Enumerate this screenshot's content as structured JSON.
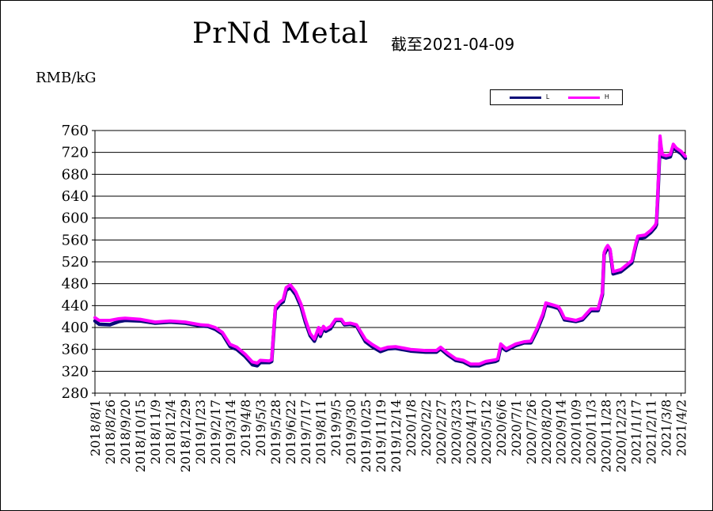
{
  "header": {
    "title": "PrNd Metal",
    "subtitle": "截至2021-04-09",
    "unit": "RMB/kG"
  },
  "colors": {
    "series_L": "#0a0a78",
    "series_H": "#ff00ff",
    "grid": "#000000"
  },
  "chart_data": {
    "type": "line",
    "title": "PrNd Metal",
    "subtitle": "截至2021-04-09",
    "ylabel": "RMB/kG",
    "ylim": [
      280,
      760
    ],
    "yticks": [
      280,
      320,
      360,
      400,
      440,
      480,
      520,
      560,
      600,
      640,
      680,
      720,
      760
    ],
    "grid": true,
    "legend_position": "top-right",
    "x_tick_labels": [
      "2018/8/1",
      "2018/8/26",
      "2018/9/20",
      "2018/10/15",
      "2018/11/9",
      "2018/12/4",
      "2018/12/29",
      "2019/1/23",
      "2019/2/17",
      "2019/3/14",
      "2019/4/8",
      "2019/5/3",
      "2019/5/28",
      "2019/6/22",
      "2019/7/17",
      "2019/8/11",
      "2019/9/5",
      "2019/9/30",
      "2019/10/25",
      "2019/11/19",
      "2019/12/14",
      "2020/1/8",
      "2020/2/2",
      "2020/2/27",
      "2020/3/23",
      "2020/4/17",
      "2020/5/12",
      "2020/6/6",
      "2020/7/1",
      "2020/7/26",
      "2020/8/20",
      "2020/9/14",
      "2020/10/9",
      "2020/11/3",
      "2020/11/28",
      "2020/12/23",
      "2021/1/17",
      "2021/2/11",
      "2021/3/8",
      "2021/4/2"
    ],
    "series": [
      {
        "name": "L",
        "x": [
          "2018/8/1",
          "2018/8/8",
          "2018/8/26",
          "2018/9/10",
          "2018/9/20",
          "2018/10/15",
          "2018/11/9",
          "2018/12/4",
          "2018/12/29",
          "2019/1/23",
          "2019/2/5",
          "2019/2/17",
          "2019/3/1",
          "2019/3/14",
          "2019/3/25",
          "2019/4/8",
          "2019/4/20",
          "2019/4/28",
          "2019/5/3",
          "2019/5/18",
          "2019/5/22",
          "2019/5/28",
          "2019/6/5",
          "2019/6/10",
          "2019/6/15",
          "2019/6/22",
          "2019/7/1",
          "2019/7/10",
          "2019/7/17",
          "2019/7/25",
          "2019/8/1",
          "2019/8/8",
          "2019/8/11",
          "2019/8/16",
          "2019/8/20",
          "2019/8/28",
          "2019/9/5",
          "2019/9/15",
          "2019/9/20",
          "2019/9/30",
          "2019/10/10",
          "2019/10/25",
          "2019/11/5",
          "2019/11/19",
          "2019/12/1",
          "2019/12/14",
          "2020/1/8",
          "2020/2/2",
          "2020/2/20",
          "2020/2/27",
          "2020/3/10",
          "2020/3/23",
          "2020/4/5",
          "2020/4/17",
          "2020/5/1",
          "2020/5/12",
          "2020/5/28",
          "2020/6/1",
          "2020/6/6",
          "2020/6/15",
          "2020/7/1",
          "2020/7/15",
          "2020/7/26",
          "2020/8/5",
          "2020/8/15",
          "2020/8/20",
          "2020/9/1",
          "2020/9/10",
          "2020/9/14",
          "2020/9/20",
          "2020/10/9",
          "2020/10/20",
          "2020/11/3",
          "2020/11/15",
          "2020/11/22",
          "2020/11/25",
          "2020/11/28",
          "2020/12/1",
          "2020/12/5",
          "2020/12/10",
          "2020/12/23",
          "2021/1/1",
          "2021/1/10",
          "2021/1/17",
          "2021/1/20",
          "2021/2/1",
          "2021/2/11",
          "2021/2/18",
          "2021/2/20",
          "2021/2/22",
          "2021/2/24",
          "2021/2/26",
          "2021/2/28",
          "2021/3/2",
          "2021/3/8",
          "2021/3/15",
          "2021/3/20",
          "2021/3/25",
          "2021/4/2",
          "2021/4/9"
        ],
        "y": [
          412,
          406,
          405,
          411,
          413,
          412,
          408,
          410,
          408,
          403,
          402,
          397,
          388,
          365,
          360,
          347,
          332,
          330,
          336,
          336,
          338,
          432,
          443,
          447,
          468,
          473,
          460,
          437,
          410,
          385,
          375,
          394,
          384,
          398,
          393,
          398,
          413,
          413,
          405,
          406,
          403,
          374,
          365,
          356,
          361,
          362,
          357,
          355,
          355,
          361,
          350,
          340,
          337,
          330,
          330,
          335,
          338,
          340,
          365,
          358,
          367,
          372,
          372,
          394,
          421,
          441,
          438,
          435,
          428,
          414,
          411,
          414,
          431,
          431,
          460,
          533,
          540,
          546,
          540,
          498,
          502,
          510,
          518,
          551,
          562,
          565,
          574,
          583,
          588,
          635,
          685,
          740,
          725,
          712,
          710,
          712,
          730,
          724,
          718,
          709
        ]
      },
      {
        "name": "H",
        "x": [
          "2018/8/1",
          "2018/8/8",
          "2018/8/26",
          "2018/9/10",
          "2018/9/20",
          "2018/10/15",
          "2018/11/9",
          "2018/12/4",
          "2018/12/29",
          "2019/1/23",
          "2019/2/5",
          "2019/2/17",
          "2019/3/1",
          "2019/3/14",
          "2019/3/25",
          "2019/4/8",
          "2019/4/20",
          "2019/4/28",
          "2019/5/3",
          "2019/5/18",
          "2019/5/22",
          "2019/5/28",
          "2019/6/5",
          "2019/6/10",
          "2019/6/15",
          "2019/6/22",
          "2019/7/1",
          "2019/7/10",
          "2019/7/17",
          "2019/7/25",
          "2019/8/1",
          "2019/8/8",
          "2019/8/11",
          "2019/8/16",
          "2019/8/20",
          "2019/8/28",
          "2019/9/5",
          "2019/9/15",
          "2019/9/20",
          "2019/9/30",
          "2019/10/10",
          "2019/10/25",
          "2019/11/5",
          "2019/11/19",
          "2019/12/1",
          "2019/12/14",
          "2020/1/8",
          "2020/2/2",
          "2020/2/20",
          "2020/2/27",
          "2020/3/10",
          "2020/3/23",
          "2020/4/5",
          "2020/4/17",
          "2020/5/1",
          "2020/5/12",
          "2020/5/28",
          "2020/6/1",
          "2020/6/6",
          "2020/6/15",
          "2020/7/1",
          "2020/7/15",
          "2020/7/26",
          "2020/8/5",
          "2020/8/15",
          "2020/8/20",
          "2020/9/1",
          "2020/9/10",
          "2020/9/14",
          "2020/9/20",
          "2020/10/9",
          "2020/10/20",
          "2020/11/3",
          "2020/11/15",
          "2020/11/22",
          "2020/11/25",
          "2020/11/28",
          "2020/12/1",
          "2020/12/5",
          "2020/12/10",
          "2020/12/23",
          "2021/1/1",
          "2021/1/10",
          "2021/1/17",
          "2021/1/20",
          "2021/2/1",
          "2021/2/11",
          "2021/2/18",
          "2021/2/20",
          "2021/2/22",
          "2021/2/24",
          "2021/2/26",
          "2021/2/28",
          "2021/3/2",
          "2021/3/8",
          "2021/3/15",
          "2021/3/20",
          "2021/3/25",
          "2021/4/2",
          "2021/4/9"
        ],
        "y": [
          418,
          413,
          413,
          416,
          417,
          415,
          410,
          412,
          410,
          405,
          404,
          400,
          391,
          369,
          364,
          351,
          337,
          335,
          340,
          339,
          341,
          437,
          447,
          451,
          473,
          478,
          465,
          442,
          415,
          389,
          379,
          400,
          388,
          402,
          397,
          402,
          415,
          415,
          407,
          408,
          405,
          378,
          369,
          360,
          364,
          365,
          360,
          358,
          358,
          364,
          353,
          343,
          340,
          333,
          333,
          338,
          341,
          343,
          370,
          361,
          370,
          374,
          375,
          398,
          425,
          445,
          441,
          438,
          431,
          417,
          413,
          417,
          434,
          434,
          464,
          537,
          545,
          550,
          543,
          502,
          506,
          514,
          522,
          555,
          567,
          569,
          578,
          587,
          592,
          640,
          690,
          750,
          730,
          716,
          714,
          716,
          735,
          728,
          722,
          713
        ]
      }
    ]
  }
}
